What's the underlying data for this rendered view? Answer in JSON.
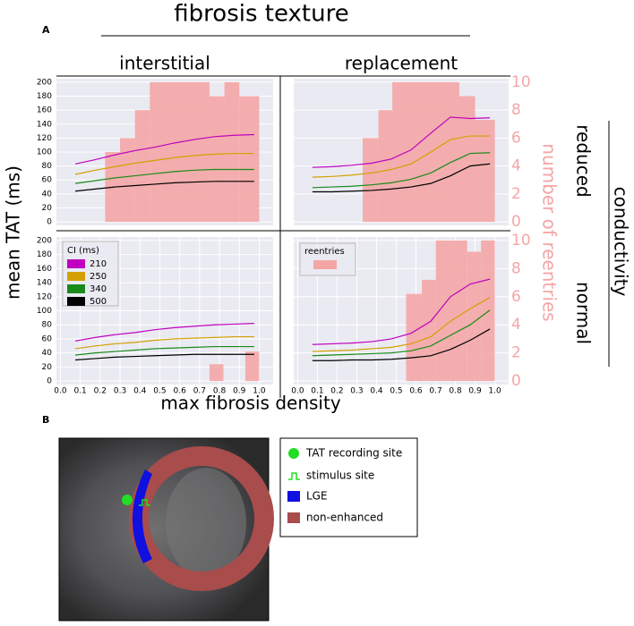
{
  "title": "fibrosis texture",
  "panel_a": "A",
  "y_label": "mean TAT (ms)",
  "y2_label": "number of reentries",
  "x_label": "max fibrosis density",
  "row_group": "conductivity",
  "row_labels": [
    "reduced",
    "normal"
  ],
  "legend_title": "CI (ms)",
  "chart_data": [
    {
      "type": "line",
      "column_title": "interstitial",
      "x": [
        0.075,
        0.175,
        0.275,
        0.375,
        0.475,
        0.575,
        0.675,
        0.775,
        0.875,
        0.975
      ],
      "series": [
        {
          "color": "#c000c0",
          "values": [
            83,
            89,
            96,
            102,
            107,
            113,
            118,
            122,
            124,
            125
          ]
        },
        {
          "color": "#d4a000",
          "values": [
            68,
            74,
            79,
            84,
            88,
            92,
            95,
            97,
            98,
            98
          ]
        },
        {
          "color": "#1a8a1a",
          "values": [
            55,
            59,
            63,
            66,
            69,
            72,
            74,
            75,
            75,
            75
          ]
        },
        {
          "color": "#000000",
          "values": [
            44,
            47,
            50,
            52,
            54,
            56,
            57,
            58,
            58,
            58
          ]
        }
      ],
      "bars": {
        "color": "#f4a6a6",
        "bins": [
          0.225,
          0.3,
          0.375,
          0.45,
          0.75,
          0.825,
          0.9,
          1.0
        ],
        "counts": [
          5,
          6,
          8,
          10,
          9,
          10,
          9
        ]
      },
      "xlim": [
        -0.02,
        1.07
      ],
      "ylim": [
        -5,
        205
      ],
      "y2lim": [
        -0.25,
        10.25
      ],
      "yticks": [
        0,
        20,
        40,
        60,
        80,
        100,
        120,
        140,
        160,
        180,
        200
      ]
    },
    {
      "type": "line",
      "column_title": "replacement",
      "x": [
        0.075,
        0.175,
        0.275,
        0.375,
        0.475,
        0.575,
        0.675,
        0.775,
        0.875,
        0.975
      ],
      "series": [
        {
          "color": "#c000c0",
          "values": [
            78,
            79,
            81,
            84,
            90,
            103,
            127,
            150,
            148,
            149
          ]
        },
        {
          "color": "#d4a000",
          "values": [
            64,
            65,
            67,
            70,
            75,
            83,
            100,
            118,
            123,
            123
          ]
        },
        {
          "color": "#1a8a1a",
          "values": [
            49,
            50,
            51,
            53,
            56,
            61,
            70,
            85,
            98,
            99
          ]
        },
        {
          "color": "#000000",
          "values": [
            43,
            43,
            44,
            45,
            47,
            50,
            55,
            66,
            80,
            83
          ]
        }
      ],
      "bars": {
        "color": "#f4a6a6",
        "bins": [
          0.33,
          0.41,
          0.48,
          0.82,
          0.9,
          1.0
        ],
        "counts": [
          6,
          8,
          10,
          9,
          7.3
        ]
      },
      "xlim": [
        -0.02,
        1.07
      ],
      "ylim": [
        -5,
        205
      ],
      "y2lim": [
        -0.25,
        10.25
      ],
      "y2ticks": [
        0,
        2,
        4,
        6,
        8,
        10
      ]
    },
    {
      "type": "line",
      "x": [
        0.075,
        0.175,
        0.275,
        0.375,
        0.475,
        0.575,
        0.675,
        0.775,
        0.875,
        0.975
      ],
      "series": [
        {
          "name": "210",
          "color": "#c000c0",
          "values": [
            57,
            62,
            66,
            69,
            73,
            76,
            78,
            80,
            81,
            82
          ]
        },
        {
          "name": "250",
          "color": "#d4a000",
          "values": [
            46,
            50,
            53,
            55,
            58,
            60,
            61,
            62,
            63,
            63
          ]
        },
        {
          "name": "340",
          "color": "#1a8a1a",
          "values": [
            37,
            40,
            42,
            44,
            46,
            47,
            48,
            49,
            49,
            49
          ]
        },
        {
          "name": "500",
          "color": "#000000",
          "values": [
            30,
            32,
            34,
            35,
            36,
            37,
            38,
            38,
            38,
            38
          ]
        }
      ],
      "bars": {
        "color": "#f4a6a6",
        "bins": [
          0.75,
          0.82,
          0.93,
          1.0
        ],
        "counts": [
          1.2,
          0,
          2.1
        ]
      },
      "xlim": [
        -0.02,
        1.07
      ],
      "ylim": [
        -5,
        205
      ],
      "y2lim": [
        -0.25,
        10.25
      ],
      "yticks": [
        0,
        20,
        40,
        60,
        80,
        100,
        120,
        140,
        160,
        180,
        200
      ],
      "xticks": [
        {
          "value": 0,
          "label": "0.0"
        },
        0.1,
        0.2,
        0.3,
        0.4,
        0.5,
        0.6,
        0.7,
        0.8,
        0.9,
        {
          "value": 1,
          "label": "1.0"
        }
      ]
    },
    {
      "type": "line",
      "x": [
        0.075,
        0.175,
        0.275,
        0.375,
        0.475,
        0.575,
        0.675,
        0.775,
        0.875,
        0.975
      ],
      "series": [
        {
          "color": "#c000c0",
          "values": [
            52,
            53,
            54,
            56,
            60,
            68,
            85,
            120,
            138,
            145
          ]
        },
        {
          "color": "#d4a000",
          "values": [
            42,
            43,
            44,
            46,
            48,
            53,
            63,
            85,
            103,
            119
          ]
        },
        {
          "color": "#1a8a1a",
          "values": [
            36,
            37,
            38,
            39,
            40,
            43,
            50,
            65,
            80,
            101
          ]
        },
        {
          "color": "#000000",
          "values": [
            29,
            29,
            30,
            30,
            31,
            33,
            36,
            45,
            58,
            74
          ]
        }
      ],
      "bars": {
        "name": "reentries",
        "color": "#f4a6a6",
        "bins": [
          0.55,
          0.63,
          0.7,
          0.86,
          0.93,
          1.0
        ],
        "counts": [
          6.2,
          7.2,
          10,
          9.2,
          10
        ]
      },
      "xlim": [
        -0.02,
        1.07
      ],
      "ylim": [
        -5,
        205
      ],
      "y2lim": [
        -0.25,
        10.25
      ],
      "y2ticks": [
        0,
        2,
        4,
        6,
        8,
        10
      ],
      "xticks": [
        {
          "value": 0,
          "label": "0.0"
        },
        0.1,
        0.2,
        0.3,
        0.4,
        0.5,
        0.6,
        0.7,
        0.8,
        0.9,
        {
          "value": 1,
          "label": "1.0"
        }
      ]
    }
  ],
  "panel_b": {
    "label": "B",
    "legend": [
      "TAT recording site",
      "stimulus site",
      "LGE",
      "non-enhanced"
    ]
  }
}
